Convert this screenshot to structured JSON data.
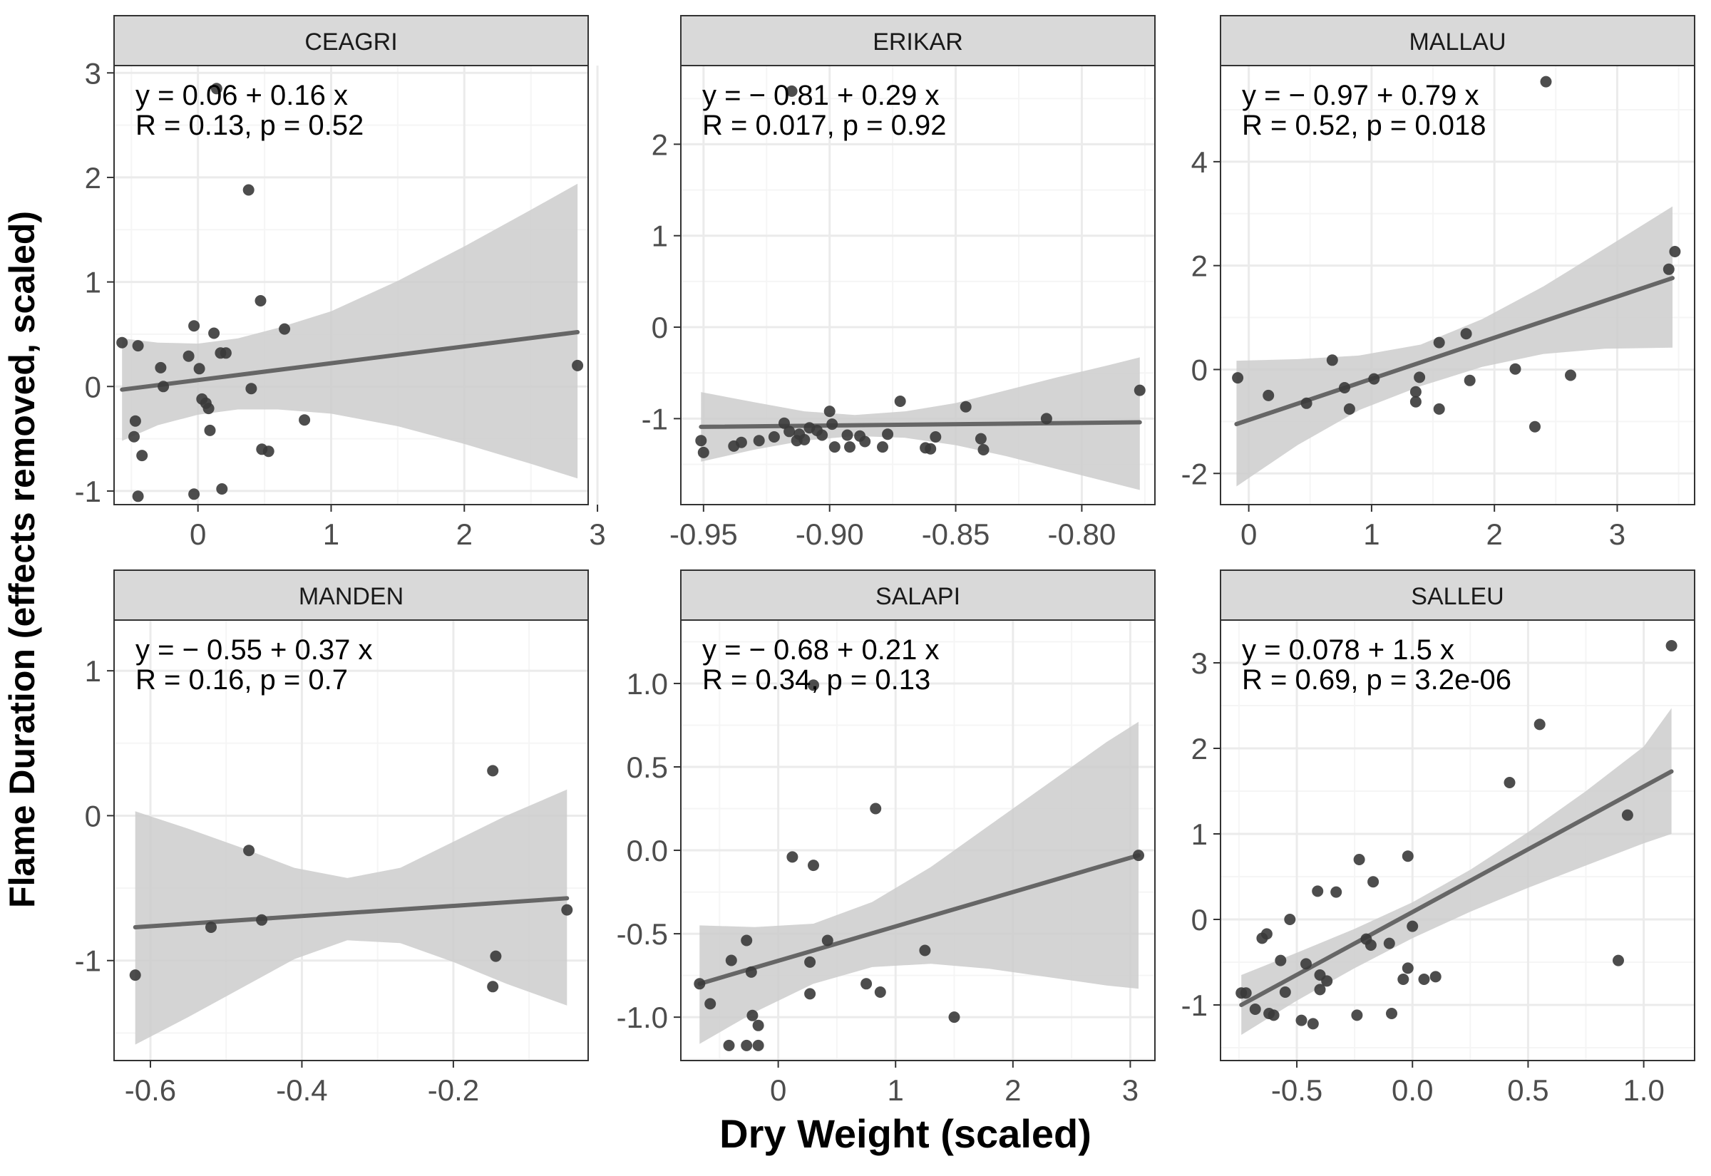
{
  "figure": {
    "xlabel": "Dry Weight (scaled)",
    "ylabel": "Flame Duration (effects removed, scaled)"
  },
  "colors": {
    "point": "#3a3a3a",
    "line": "#666666",
    "band": "#cccccc",
    "strip_bg": "#d9d9d9",
    "grid_major": "#ebebeb",
    "grid_minor": "#f5f5f5",
    "border": "#333333"
  },
  "chart_data": [
    {
      "type": "scatter",
      "title": "CEAGRI",
      "xlim": [
        -0.63,
        2.93
      ],
      "ylim": [
        -1.13,
        3.07
      ],
      "xticks": [
        0,
        1,
        2,
        3
      ],
      "xtick_labels": [
        "0",
        "1",
        "2",
        "3"
      ],
      "yticks": [
        -1,
        0,
        1,
        2,
        3
      ],
      "ytick_labels": [
        "-1",
        "0",
        "1",
        "2",
        "3"
      ],
      "annotation": [
        "y = 0.06 + 0.16 x",
        "R = 0.13, p = 0.52"
      ],
      "fit": {
        "x": [
          -0.57,
          2.85
        ],
        "y": [
          -0.03,
          0.52
        ]
      },
      "band": {
        "x": [
          -0.57,
          -0.3,
          0,
          0.3,
          0.6,
          1.0,
          1.5,
          2.0,
          2.5,
          2.85
        ],
        "lower": [
          -0.52,
          -0.37,
          -0.27,
          -0.22,
          -0.22,
          -0.26,
          -0.38,
          -0.55,
          -0.74,
          -0.88
        ],
        "upper": [
          0.46,
          0.42,
          0.41,
          0.46,
          0.56,
          0.72,
          1.01,
          1.34,
          1.69,
          1.94
        ]
      },
      "points": [
        {
          "x": -0.57,
          "y": 0.42
        },
        {
          "x": -0.45,
          "y": 0.39
        },
        {
          "x": -0.26,
          "y": 0.0
        },
        {
          "x": -0.28,
          "y": 0.18
        },
        {
          "x": -0.07,
          "y": 0.29
        },
        {
          "x": -0.03,
          "y": 0.58
        },
        {
          "x": 0.01,
          "y": 0.17
        },
        {
          "x": 0.12,
          "y": 0.51
        },
        {
          "x": 0.17,
          "y": 0.32
        },
        {
          "x": 0.21,
          "y": 0.32
        },
        {
          "x": 0.03,
          "y": -0.12
        },
        {
          "x": 0.06,
          "y": -0.16
        },
        {
          "x": 0.08,
          "y": -0.21
        },
        {
          "x": 0.09,
          "y": -0.42
        },
        {
          "x": -0.47,
          "y": -0.33
        },
        {
          "x": -0.48,
          "y": -0.48
        },
        {
          "x": -0.42,
          "y": -0.66
        },
        {
          "x": -0.45,
          "y": -1.05
        },
        {
          "x": -0.03,
          "y": -1.03
        },
        {
          "x": 0.18,
          "y": -0.98
        },
        {
          "x": 0.14,
          "y": 2.85
        },
        {
          "x": 0.38,
          "y": 1.88
        },
        {
          "x": 0.47,
          "y": 0.82
        },
        {
          "x": 0.65,
          "y": 0.55
        },
        {
          "x": 0.4,
          "y": -0.02
        },
        {
          "x": 0.48,
          "y": -0.6
        },
        {
          "x": 0.53,
          "y": -0.62
        },
        {
          "x": 0.8,
          "y": -0.32
        },
        {
          "x": 2.85,
          "y": 0.2
        }
      ]
    },
    {
      "type": "scatter",
      "title": "ERIKAR",
      "xlim": [
        -0.959,
        -0.771
      ],
      "ylim": [
        -1.94,
        2.86
      ],
      "xticks": [
        -0.95,
        -0.9,
        -0.85,
        -0.8
      ],
      "xtick_labels": [
        "-0.95",
        "-0.90",
        "-0.85",
        "-0.80"
      ],
      "yticks": [
        -1,
        0,
        1,
        2
      ],
      "ytick_labels": [
        "-1",
        "0",
        "1",
        "2"
      ],
      "annotation": [
        "y = − 0.81 + 0.29 x",
        "R = 0.017, p = 0.92"
      ],
      "fit": {
        "x": [
          -0.951,
          -0.777
        ],
        "y": [
          -1.09,
          -1.04
        ]
      },
      "band": {
        "x": [
          -0.951,
          -0.93,
          -0.91,
          -0.89,
          -0.87,
          -0.85,
          -0.83,
          -0.81,
          -0.79,
          -0.777
        ],
        "lower": [
          -1.47,
          -1.34,
          -1.24,
          -1.19,
          -1.21,
          -1.29,
          -1.41,
          -1.55,
          -1.69,
          -1.78
        ],
        "upper": [
          -0.71,
          -0.82,
          -0.92,
          -0.96,
          -0.92,
          -0.83,
          -0.69,
          -0.55,
          -0.42,
          -0.33
        ]
      },
      "points": [
        {
          "x": -0.951,
          "y": -1.24
        },
        {
          "x": -0.95,
          "y": -1.37
        },
        {
          "x": -0.938,
          "y": -1.3
        },
        {
          "x": -0.935,
          "y": -1.26
        },
        {
          "x": -0.928,
          "y": -1.24
        },
        {
          "x": -0.922,
          "y": -1.2
        },
        {
          "x": -0.918,
          "y": -1.05
        },
        {
          "x": -0.916,
          "y": -1.14
        },
        {
          "x": -0.913,
          "y": -1.24
        },
        {
          "x": -0.912,
          "y": -1.17
        },
        {
          "x": -0.91,
          "y": -1.23
        },
        {
          "x": -0.908,
          "y": -1.1
        },
        {
          "x": -0.905,
          "y": -1.13
        },
        {
          "x": -0.903,
          "y": -1.18
        },
        {
          "x": -0.9,
          "y": -0.92
        },
        {
          "x": -0.899,
          "y": -1.06
        },
        {
          "x": -0.898,
          "y": -1.31
        },
        {
          "x": -0.893,
          "y": -1.18
        },
        {
          "x": -0.892,
          "y": -1.31
        },
        {
          "x": -0.888,
          "y": -1.19
        },
        {
          "x": -0.886,
          "y": -1.25
        },
        {
          "x": -0.879,
          "y": -1.31
        },
        {
          "x": -0.877,
          "y": -1.17
        },
        {
          "x": -0.872,
          "y": -0.81
        },
        {
          "x": -0.862,
          "y": -1.32
        },
        {
          "x": -0.86,
          "y": -1.33
        },
        {
          "x": -0.858,
          "y": -1.2
        },
        {
          "x": -0.846,
          "y": -0.87
        },
        {
          "x": -0.84,
          "y": -1.22
        },
        {
          "x": -0.839,
          "y": -1.34
        },
        {
          "x": -0.814,
          "y": -1.0
        },
        {
          "x": -0.777,
          "y": -0.69
        },
        {
          "x": -0.915,
          "y": 2.58
        }
      ]
    },
    {
      "type": "scatter",
      "title": "MALLAU",
      "xlim": [
        -0.23,
        3.63
      ],
      "ylim": [
        -2.6,
        5.85
      ],
      "xticks": [
        0,
        1,
        2,
        3
      ],
      "xtick_labels": [
        "0",
        "1",
        "2",
        "3"
      ],
      "yticks": [
        -2,
        0,
        2,
        4
      ],
      "ytick_labels": [
        "-2",
        "0",
        "2",
        "4"
      ],
      "annotation": [
        "y = − 0.97 + 0.79 x",
        "R = 0.52, p = 0.018"
      ],
      "fit": {
        "x": [
          -0.1,
          3.45
        ],
        "y": [
          -1.05,
          1.76
        ]
      },
      "band": {
        "x": [
          -0.1,
          0.4,
          0.9,
          1.4,
          1.9,
          2.4,
          2.9,
          3.45
        ],
        "lower": [
          -2.25,
          -1.45,
          -0.78,
          -0.32,
          0.05,
          0.3,
          0.4,
          0.42
        ],
        "upper": [
          0.17,
          0.2,
          0.27,
          0.48,
          0.97,
          1.6,
          2.33,
          3.14
        ]
      },
      "points": [
        {
          "x": -0.09,
          "y": -0.16
        },
        {
          "x": 0.16,
          "y": -0.5
        },
        {
          "x": 0.47,
          "y": -0.65
        },
        {
          "x": 0.68,
          "y": 0.18
        },
        {
          "x": 0.78,
          "y": -0.35
        },
        {
          "x": 0.82,
          "y": -0.76
        },
        {
          "x": 1.02,
          "y": -0.18
        },
        {
          "x": 1.36,
          "y": -0.43
        },
        {
          "x": 1.36,
          "y": -0.62
        },
        {
          "x": 1.39,
          "y": -0.15
        },
        {
          "x": 1.55,
          "y": 0.52
        },
        {
          "x": 1.55,
          "y": -0.76
        },
        {
          "x": 1.77,
          "y": 0.69
        },
        {
          "x": 1.8,
          "y": -0.21
        },
        {
          "x": 2.17,
          "y": 0.01
        },
        {
          "x": 2.33,
          "y": -1.1
        },
        {
          "x": 2.42,
          "y": 5.54
        },
        {
          "x": 2.62,
          "y": -0.11
        },
        {
          "x": 3.42,
          "y": 1.93
        },
        {
          "x": 3.47,
          "y": 2.27
        }
      ]
    },
    {
      "type": "scatter",
      "title": "MANDEN",
      "xlim": [
        -0.648,
        -0.022
      ],
      "ylim": [
        -1.69,
        1.35
      ],
      "xticks": [
        -0.6,
        -0.4,
        -0.2
      ],
      "xtick_labels": [
        "-0.6",
        "-0.4",
        "-0.2"
      ],
      "yticks": [
        -1,
        0,
        1
      ],
      "ytick_labels": [
        "-1",
        "0",
        "1"
      ],
      "annotation": [
        "y = − 0.55 + 0.37 x",
        "R = 0.16, p = 0.7"
      ],
      "fit": {
        "x": [
          -0.62,
          -0.05
        ],
        "y": [
          -0.77,
          -0.57
        ]
      },
      "band": {
        "x": [
          -0.62,
          -0.55,
          -0.48,
          -0.41,
          -0.34,
          -0.27,
          -0.2,
          -0.13,
          -0.05
        ],
        "lower": [
          -1.58,
          -1.39,
          -1.19,
          -0.99,
          -0.86,
          -0.88,
          -1.01,
          -1.16,
          -1.31
        ],
        "upper": [
          0.03,
          -0.09,
          -0.22,
          -0.36,
          -0.43,
          -0.36,
          -0.18,
          0.0,
          0.18
        ]
      },
      "points": [
        {
          "x": -0.62,
          "y": -1.1
        },
        {
          "x": -0.52,
          "y": -0.77
        },
        {
          "x": -0.47,
          "y": -0.24
        },
        {
          "x": -0.453,
          "y": -0.72
        },
        {
          "x": -0.148,
          "y": 0.31
        },
        {
          "x": -0.144,
          "y": -0.97
        },
        {
          "x": -0.148,
          "y": -1.18
        },
        {
          "x": -0.05,
          "y": -0.65
        }
      ]
    },
    {
      "type": "scatter",
      "title": "SALAPI",
      "xlim": [
        -0.83,
        3.21
      ],
      "ylim": [
        -1.26,
        1.38
      ],
      "xticks": [
        0,
        1,
        2,
        3
      ],
      "xtick_labels": [
        "0",
        "1",
        "2",
        "3"
      ],
      "yticks": [
        -1.0,
        -0.5,
        0.0,
        0.5,
        1.0
      ],
      "ytick_labels": [
        "-1.0",
        "-0.5",
        "0.0",
        "0.5",
        "1.0"
      ],
      "annotation": [
        "y = − 0.68 + 0.21 x",
        "R = 0.34, p = 0.13"
      ],
      "fit": {
        "x": [
          -0.67,
          3.07
        ],
        "y": [
          -0.8,
          -0.03
        ]
      },
      "band": {
        "x": [
          -0.67,
          -0.2,
          0.3,
          0.8,
          1.3,
          1.8,
          2.3,
          2.8,
          3.07
        ],
        "lower": [
          -1.16,
          -0.97,
          -0.8,
          -0.7,
          -0.68,
          -0.71,
          -0.76,
          -0.81,
          -0.83
        ],
        "upper": [
          -0.45,
          -0.46,
          -0.44,
          -0.31,
          -0.1,
          0.15,
          0.4,
          0.65,
          0.77
        ]
      },
      "points": [
        {
          "x": -0.67,
          "y": -0.8
        },
        {
          "x": -0.58,
          "y": -0.92
        },
        {
          "x": -0.42,
          "y": -1.17
        },
        {
          "x": -0.4,
          "y": -0.66
        },
        {
          "x": -0.27,
          "y": -0.54
        },
        {
          "x": -0.27,
          "y": -1.17
        },
        {
          "x": -0.23,
          "y": -0.73
        },
        {
          "x": -0.22,
          "y": -0.99
        },
        {
          "x": -0.17,
          "y": -1.05
        },
        {
          "x": -0.17,
          "y": -1.17
        },
        {
          "x": 0.12,
          "y": -0.04
        },
        {
          "x": 0.27,
          "y": -0.67
        },
        {
          "x": 0.27,
          "y": -0.86
        },
        {
          "x": 0.3,
          "y": 0.99
        },
        {
          "x": 0.3,
          "y": -0.09
        },
        {
          "x": 0.42,
          "y": -0.54
        },
        {
          "x": 0.75,
          "y": -0.8
        },
        {
          "x": 0.83,
          "y": 0.25
        },
        {
          "x": 0.87,
          "y": -0.85
        },
        {
          "x": 1.25,
          "y": -0.6
        },
        {
          "x": 1.5,
          "y": -1.0
        },
        {
          "x": 3.07,
          "y": -0.03
        }
      ]
    },
    {
      "type": "scatter",
      "title": "SALLEU",
      "xlim": [
        -0.83,
        1.22
      ],
      "ylim": [
        -1.65,
        3.5
      ],
      "xticks": [
        -0.5,
        0.0,
        0.5,
        1.0
      ],
      "xtick_labels": [
        "-0.5",
        "0.0",
        "0.5",
        "1.0"
      ],
      "yticks": [
        -1,
        0,
        1,
        2,
        3
      ],
      "ytick_labels": [
        "-1",
        "0",
        "1",
        "2",
        "3"
      ],
      "annotation": [
        "y = 0.078 + 1.5 x",
        "R = 0.69, p = 3.2e-06"
      ],
      "fit": {
        "x": [
          -0.74,
          1.12
        ],
        "y": [
          -1.0,
          1.73
        ]
      },
      "band": {
        "x": [
          -0.74,
          -0.5,
          -0.25,
          0.0,
          0.25,
          0.5,
          0.75,
          1.0,
          1.12
        ],
        "lower": [
          -1.35,
          -0.95,
          -0.57,
          -0.22,
          0.09,
          0.37,
          0.63,
          0.89,
          1.0
        ],
        "upper": [
          -0.65,
          -0.39,
          -0.11,
          0.2,
          0.58,
          1.02,
          1.5,
          2.02,
          2.47
        ]
      },
      "points": [
        {
          "x": -0.74,
          "y": -0.86
        },
        {
          "x": -0.72,
          "y": -0.86
        },
        {
          "x": -0.68,
          "y": -1.05
        },
        {
          "x": -0.65,
          "y": -0.22
        },
        {
          "x": -0.63,
          "y": -0.17
        },
        {
          "x": -0.62,
          "y": -1.1
        },
        {
          "x": -0.6,
          "y": -1.12
        },
        {
          "x": -0.57,
          "y": -0.48
        },
        {
          "x": -0.55,
          "y": -0.85
        },
        {
          "x": -0.53,
          "y": 0.0
        },
        {
          "x": -0.48,
          "y": -1.18
        },
        {
          "x": -0.46,
          "y": -0.52
        },
        {
          "x": -0.43,
          "y": -1.22
        },
        {
          "x": -0.41,
          "y": 0.33
        },
        {
          "x": -0.4,
          "y": -0.65
        },
        {
          "x": -0.4,
          "y": -0.82
        },
        {
          "x": -0.37,
          "y": -0.72
        },
        {
          "x": -0.33,
          "y": 0.32
        },
        {
          "x": -0.23,
          "y": 0.7
        },
        {
          "x": -0.24,
          "y": -1.12
        },
        {
          "x": -0.2,
          "y": -0.23
        },
        {
          "x": -0.18,
          "y": -0.3
        },
        {
          "x": -0.17,
          "y": 0.44
        },
        {
          "x": -0.1,
          "y": -0.28
        },
        {
          "x": -0.09,
          "y": -1.1
        },
        {
          "x": -0.04,
          "y": -0.7
        },
        {
          "x": -0.02,
          "y": -0.57
        },
        {
          "x": -0.02,
          "y": 0.74
        },
        {
          "x": 0.0,
          "y": -0.08
        },
        {
          "x": 0.05,
          "y": -0.7
        },
        {
          "x": 0.1,
          "y": -0.67
        },
        {
          "x": 0.42,
          "y": 1.6
        },
        {
          "x": 0.55,
          "y": 2.28
        },
        {
          "x": 0.89,
          "y": -0.48
        },
        {
          "x": 0.93,
          "y": 1.22
        },
        {
          "x": 1.12,
          "y": 3.2
        }
      ]
    }
  ]
}
